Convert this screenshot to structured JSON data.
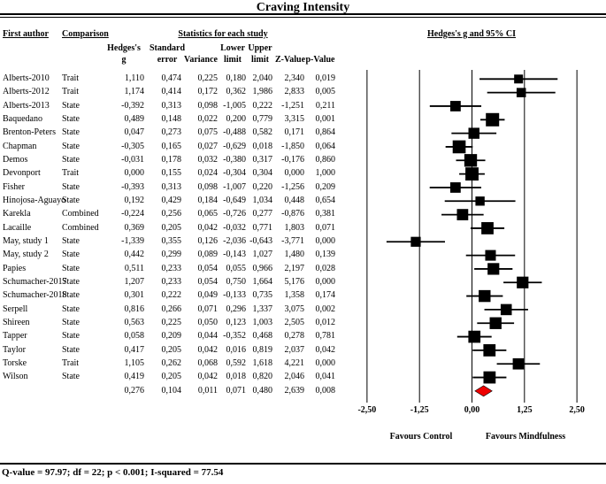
{
  "title": "Craving Intensity",
  "table": {
    "col_first_author": "First author",
    "col_comparison": "Comparison",
    "col_stats_group": "Statistics for each study",
    "col_plot_header": "Hedges's g and 95% CI",
    "stat_sub_headers": [
      {
        "line1": "Hedges's",
        "line2": "g"
      },
      {
        "line1": "Standard",
        "line2": "error"
      },
      {
        "line1": "",
        "line2": "Variance"
      },
      {
        "line1": "Lower",
        "line2": "limit"
      },
      {
        "line1": "Upper",
        "line2": "limit"
      },
      {
        "line1": "",
        "line2": "Z-Value"
      },
      {
        "line1": "",
        "line2": "p-Value"
      }
    ]
  },
  "chart_data": {
    "type": "scatter",
    "subtype": "forest-plot",
    "title": "Craving Intensity",
    "plot_header": "Hedges's g and 95% CI",
    "xlabel": "Hedges's g",
    "xlim": [
      -2.5,
      2.5
    ],
    "x_ticks": [
      -2.5,
      -1.25,
      0,
      1.25,
      2.5
    ],
    "x_tick_labels": [
      "-2,50",
      "-1,25",
      "0,00",
      "1,25",
      "2,50"
    ],
    "favours_left": "Favours Control",
    "favours_right": "Favours Mindfulness",
    "decimal_separator": ",",
    "studies": [
      {
        "author": "Alberts-2010",
        "comparison": "Trait",
        "g": 1.11,
        "se": 0.474,
        "variance": 0.225,
        "lower": 0.18,
        "upper": 2.04,
        "z": 2.34,
        "p": 0.019
      },
      {
        "author": "Alberts-2012",
        "comparison": "Trait",
        "g": 1.174,
        "se": 0.414,
        "variance": 0.172,
        "lower": 0.362,
        "upper": 1.986,
        "z": 2.833,
        "p": 0.005
      },
      {
        "author": "Alberts-2013",
        "comparison": "State",
        "g": -0.392,
        "se": 0.313,
        "variance": 0.098,
        "lower": -1.005,
        "upper": 0.222,
        "z": -1.251,
        "p": 0.211
      },
      {
        "author": "Baquedano",
        "comparison": "State",
        "g": 0.489,
        "se": 0.148,
        "variance": 0.022,
        "lower": 0.2,
        "upper": 0.779,
        "z": 3.315,
        "p": 0.001
      },
      {
        "author": "Brenton-Peters",
        "comparison": "State",
        "g": 0.047,
        "se": 0.273,
        "variance": 0.075,
        "lower": -0.488,
        "upper": 0.582,
        "z": 0.171,
        "p": 0.864
      },
      {
        "author": "Chapman",
        "comparison": "State",
        "g": -0.305,
        "se": 0.165,
        "variance": 0.027,
        "lower": -0.629,
        "upper": 0.018,
        "z": -1.85,
        "p": 0.064
      },
      {
        "author": "Demos",
        "comparison": "State",
        "g": -0.031,
        "se": 0.178,
        "variance": 0.032,
        "lower": -0.38,
        "upper": 0.317,
        "z": -0.176,
        "p": 0.86
      },
      {
        "author": "Devonport",
        "comparison": "Trait",
        "g": 0.0,
        "se": 0.155,
        "variance": 0.024,
        "lower": -0.304,
        "upper": 0.304,
        "z": 0.0,
        "p": 1.0
      },
      {
        "author": "Fisher",
        "comparison": "State",
        "g": -0.393,
        "se": 0.313,
        "variance": 0.098,
        "lower": -1.007,
        "upper": 0.22,
        "z": -1.256,
        "p": 0.209
      },
      {
        "author": "Hinojosa-Aguayo",
        "comparison": "State",
        "g": 0.192,
        "se": 0.429,
        "variance": 0.184,
        "lower": -0.649,
        "upper": 1.034,
        "z": 0.448,
        "p": 0.654
      },
      {
        "author": "Karekla",
        "comparison": "Combined",
        "g": -0.224,
        "se": 0.256,
        "variance": 0.065,
        "lower": -0.726,
        "upper": 0.277,
        "z": -0.876,
        "p": 0.381
      },
      {
        "author": "Lacaille",
        "comparison": "Combined",
        "g": 0.369,
        "se": 0.205,
        "variance": 0.042,
        "lower": -0.032,
        "upper": 0.771,
        "z": 1.803,
        "p": 0.071
      },
      {
        "author": "May, study 1",
        "comparison": "State",
        "g": -1.339,
        "se": 0.355,
        "variance": 0.126,
        "lower": -2.036,
        "upper": -0.643,
        "z": -3.771,
        "p": 0.0
      },
      {
        "author": "May, study 2",
        "comparison": "State",
        "g": 0.442,
        "se": 0.299,
        "variance": 0.089,
        "lower": -0.143,
        "upper": 1.027,
        "z": 1.48,
        "p": 0.139
      },
      {
        "author": "Papies",
        "comparison": "State",
        "g": 0.511,
        "se": 0.233,
        "variance": 0.054,
        "lower": 0.055,
        "upper": 0.966,
        "z": 2.197,
        "p": 0.028
      },
      {
        "author": "Schumacher-2017",
        "comparison": "State",
        "g": 1.207,
        "se": 0.233,
        "variance": 0.054,
        "lower": 0.75,
        "upper": 1.664,
        "z": 5.176,
        "p": 0.0
      },
      {
        "author": "Schumacher-2018",
        "comparison": "State",
        "g": 0.301,
        "se": 0.222,
        "variance": 0.049,
        "lower": -0.133,
        "upper": 0.735,
        "z": 1.358,
        "p": 0.174
      },
      {
        "author": "Serpell",
        "comparison": "State",
        "g": 0.816,
        "se": 0.266,
        "variance": 0.071,
        "lower": 0.296,
        "upper": 1.337,
        "z": 3.075,
        "p": 0.002
      },
      {
        "author": "Shireen",
        "comparison": "State",
        "g": 0.563,
        "se": 0.225,
        "variance": 0.05,
        "lower": 0.123,
        "upper": 1.003,
        "z": 2.505,
        "p": 0.012
      },
      {
        "author": "Tapper",
        "comparison": "State",
        "g": 0.058,
        "se": 0.209,
        "variance": 0.044,
        "lower": -0.352,
        "upper": 0.468,
        "z": 0.278,
        "p": 0.781
      },
      {
        "author": "Taylor",
        "comparison": "State",
        "g": 0.417,
        "se": 0.205,
        "variance": 0.042,
        "lower": 0.016,
        "upper": 0.819,
        "z": 2.037,
        "p": 0.042
      },
      {
        "author": "Torske",
        "comparison": "Trait",
        "g": 1.105,
        "se": 0.262,
        "variance": 0.068,
        "lower": 0.592,
        "upper": 1.618,
        "z": 4.221,
        "p": 0.0
      },
      {
        "author": "Wilson",
        "comparison": "State",
        "g": 0.419,
        "se": 0.205,
        "variance": 0.042,
        "lower": 0.018,
        "upper": 0.82,
        "z": 2.046,
        "p": 0.041
      }
    ],
    "overall": {
      "g": 0.276,
      "se": 0.104,
      "variance": 0.011,
      "lower": 0.071,
      "upper": 0.48,
      "z": 2.639,
      "p": 0.008
    }
  },
  "footer": "Q-value = 97.97; df = 22; p < 0.001; I-squared = 77.54",
  "colors": {
    "text": "#000000",
    "marker": "#000000",
    "gridline": "#000000",
    "overall_diamond": "#ee0000"
  }
}
